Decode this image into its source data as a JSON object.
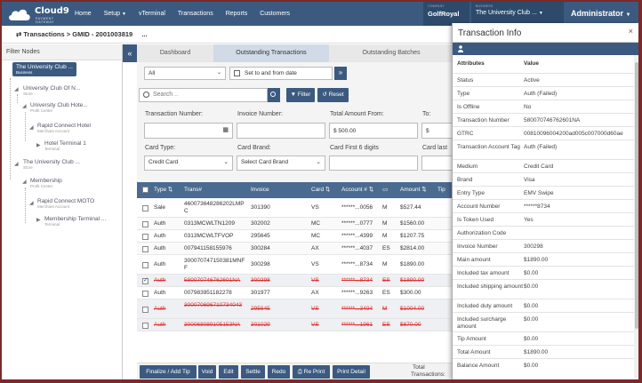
{
  "app": {
    "brand": "Cloud9",
    "brand_sub_1": "PAYMENT",
    "brand_sub_2": "GATEWAY"
  },
  "nav": {
    "items": [
      "Home",
      "Setup",
      "vTerminal",
      "Transactions",
      "Reports",
      "Customers"
    ]
  },
  "company": {
    "label": "COMPANY",
    "value": "GolfRoyal"
  },
  "business": {
    "label": "BUSINESS",
    "value": "The University Club ..."
  },
  "user": {
    "name": "Administrator"
  },
  "breadcrumb": {
    "root": "Transactions",
    "sep": ">",
    "gmid": "GMID - 2001003819",
    "more": "..."
  },
  "filter_panel": {
    "title": "Filter Nodes",
    "nodes": [
      {
        "label": "The University Club ...",
        "type": "Business"
      },
      {
        "label": "University Club Of N...",
        "type": "Store"
      },
      {
        "label": "University Club Hote...",
        "type": "Profit Center"
      },
      {
        "label": "Rapid Connect Hotel",
        "type": "Merchant Account"
      },
      {
        "label": "Hotel Terminal 1",
        "type": "Terminal"
      },
      {
        "label": "The University Club ...",
        "type": "Store"
      },
      {
        "label": "Membership",
        "type": "Profit Center"
      },
      {
        "label": "Rapid Connect MOTO",
        "type": "Merchant Account"
      },
      {
        "label": "Membership Terminal ...",
        "type": "Terminal"
      }
    ]
  },
  "tabs": [
    "Dashboard",
    "Outstanding Transactions",
    "Outstanding Batches"
  ],
  "filters": {
    "status": "All",
    "date_placeholder": "Set to and from date",
    "search_placeholder": "Search ..",
    "filter_btn": "Filter",
    "reset_btn": "Reset",
    "txn_number_label": "Transaction Number:",
    "invoice_label": "Invoice Number:",
    "amount_from_label": "Total Amount From:",
    "amount_from_value": "$ 500.00",
    "to_label": "To:",
    "to_value": "$",
    "card_type_label": "Card Type:",
    "card_type_value": "Credit Card",
    "card_brand_label": "Card Brand:",
    "card_brand_value": "Select Card Brand",
    "card_first6_label": "Card First 6 digits",
    "card_last_label": "Card last"
  },
  "table": {
    "headers": [
      "Type",
      "Trans#",
      "Invoice",
      "Card",
      "Account #",
      "Amount",
      "Tip"
    ],
    "rows": [
      {
        "type": "Sale",
        "trans": "460073648286202LMPC",
        "invoice": "301390",
        "card": "VS",
        "account": "******...0056",
        "entry": "M",
        "amount": "$527.44",
        "struck": false,
        "checked": false
      },
      {
        "type": "Auth",
        "trans": "0313MCWLTN1209",
        "invoice": "302002",
        "card": "MC",
        "account": "******...0777",
        "entry": "M",
        "amount": "$1560.00",
        "struck": false,
        "checked": false
      },
      {
        "type": "Auth",
        "trans": "0313MCWLTFVOP",
        "invoice": "295645",
        "card": "MC",
        "account": "******...4399",
        "entry": "M",
        "amount": "$1207.75",
        "struck": false,
        "checked": false
      },
      {
        "type": "Auth",
        "trans": "007941158155976",
        "invoice": "300284",
        "card": "AX",
        "account": "******...4037",
        "entry": "ES",
        "amount": "$2814.00",
        "struck": false,
        "checked": false
      },
      {
        "type": "Auth",
        "trans": "300070747150381MNFF",
        "invoice": "300298",
        "card": "VS",
        "account": "******...8734",
        "entry": "M",
        "amount": "$1890.00",
        "struck": false,
        "checked": false
      },
      {
        "type": "Auth",
        "trans": "580070746762601NA",
        "invoice": "300298",
        "card": "VS",
        "account": "******...8734",
        "entry": "ES",
        "amount": "$1890.00",
        "struck": true,
        "checked": true
      },
      {
        "type": "Auth",
        "trans": "007983951182278",
        "invoice": "301977",
        "card": "AX",
        "account": "******...9263",
        "entry": "ES",
        "amount": "$300.00",
        "struck": false,
        "checked": false
      },
      {
        "type": "Auth",
        "trans": "300070696710734043",
        "invoice": "295645",
        "card": "VS",
        "account": "******...3494",
        "entry": "M",
        "amount": "$1004.00",
        "struck": true,
        "checked": false
      },
      {
        "type": "Auth",
        "trans": "300068089105153NA",
        "invoice": "301029",
        "card": "VS",
        "account": "******...1961",
        "entry": "ES",
        "amount": "$670.00",
        "struck": true,
        "checked": false
      }
    ]
  },
  "actions": [
    "Finalize / Add Tip",
    "Void",
    "Edit",
    "Settle",
    "Redo",
    "Re Print",
    "Print Detail"
  ],
  "totals": {
    "label_1": "Total",
    "label_2": "Transactions:"
  },
  "info_panel": {
    "title": "Transaction Info",
    "close": "×",
    "col_attr": "Attributes",
    "col_value": "Value",
    "rows": [
      {
        "a": "Status",
        "v": "Active"
      },
      {
        "a": "Type",
        "v": "Auth (Failed)"
      },
      {
        "a": "Is Offline",
        "v": "No"
      },
      {
        "a": "Transaction Number",
        "v": "580070746762601NA"
      },
      {
        "a": "GTRC",
        "v": "00810096004200ad005c007000d60ae"
      },
      {
        "a": "Transaction Account Tag",
        "v": "Auth (Failed)"
      },
      {
        "a": "Medium",
        "v": "Credit Card"
      },
      {
        "a": "Brand",
        "v": "Visa"
      },
      {
        "a": "Entry Type",
        "v": "EMV Swipe"
      },
      {
        "a": "Account Number",
        "v": "******8734"
      },
      {
        "a": "Is Token Used",
        "v": "Yes"
      },
      {
        "a": "Authorization Code",
        "v": ""
      },
      {
        "a": "Invoice Number",
        "v": "300298"
      },
      {
        "a": "Main amount",
        "v": "$1890.00"
      },
      {
        "a": "Included tax amount",
        "v": "$0.00"
      },
      {
        "a": "Included shipping amount",
        "v": "$0.00"
      },
      {
        "a": "Included duty amount",
        "v": "$0.00"
      },
      {
        "a": "Included surcharge amount",
        "v": "$0.00"
      },
      {
        "a": "Tip Amount",
        "v": "$0.00"
      },
      {
        "a": "Total Amount",
        "v": "$1890.00"
      },
      {
        "a": "Balance Amount",
        "v": "$0.00"
      }
    ]
  }
}
